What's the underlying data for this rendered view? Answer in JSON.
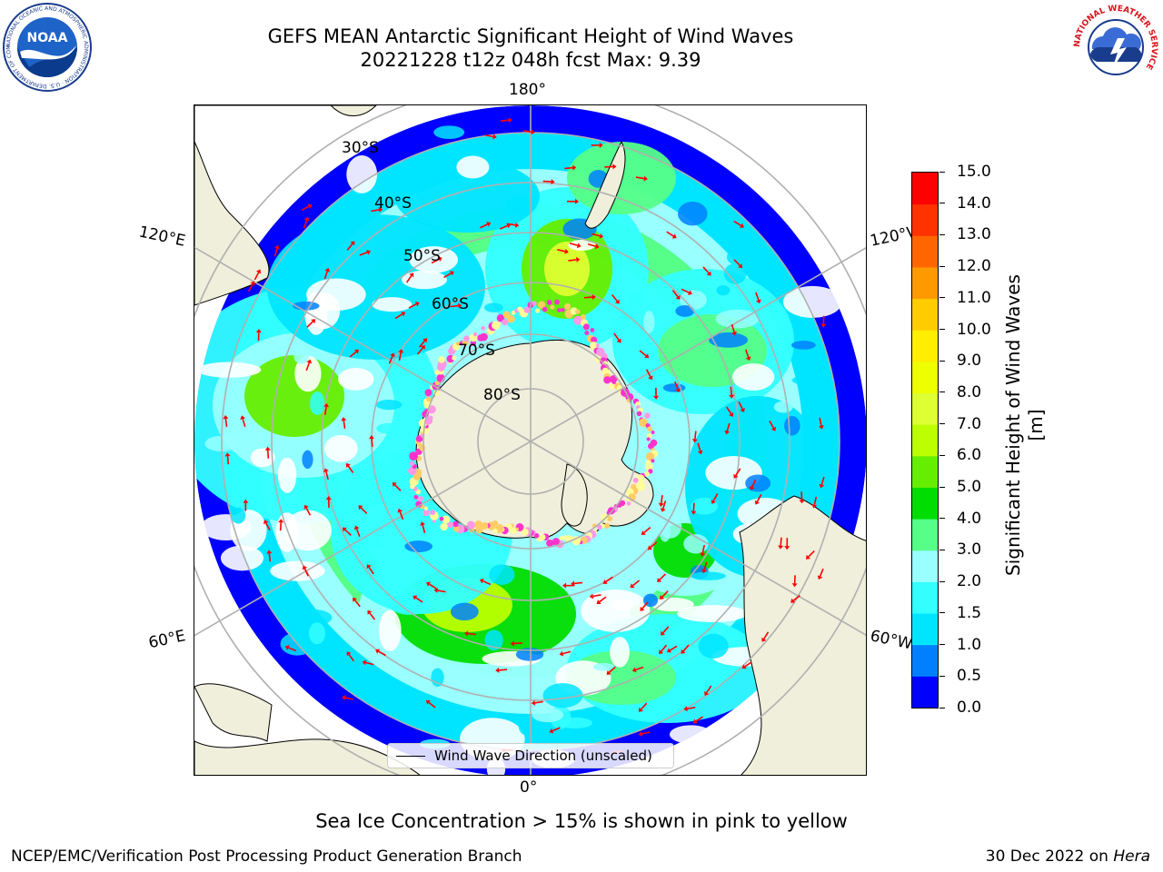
{
  "title": {
    "line1": "GEFS MEAN Antarctic Significant Height of Wind Waves",
    "line2": "20221228 t12z 048h fcst   Max: 9.39"
  },
  "map": {
    "projection": "south-polar-stereographic",
    "longitude_labels": {
      "top": "180°",
      "bottom": "0°",
      "left_upper": "120°E",
      "right_upper": "120°W",
      "left_lower": "60°E",
      "right_lower": "60°W"
    },
    "latitude_labels": [
      "30°S",
      "40°S",
      "50°S",
      "60°S",
      "70°S",
      "80°S"
    ],
    "land_color": "#efefdb",
    "ice_colors": [
      "#ff33cc",
      "#ff99e6",
      "#ffcc66",
      "#ffff99"
    ],
    "arrow_color": "#ff0000",
    "max_value": "9.39"
  },
  "colorbar": {
    "label": "Significant Height of Wind Waves [m]",
    "ticks": [
      "0.0",
      "0.5",
      "1.0",
      "1.5",
      "2.0",
      "3.0",
      "4.0",
      "5.0",
      "6.0",
      "7.0",
      "8.0",
      "9.0",
      "10.0",
      "11.0",
      "12.0",
      "13.0",
      "14.0",
      "15.0"
    ],
    "colors": [
      "#0000ff",
      "#0080ff",
      "#00e5ff",
      "#33ffff",
      "#99ffff",
      "#55ff88",
      "#00dd00",
      "#66ee00",
      "#bbff00",
      "#ddff33",
      "#eeff00",
      "#ffee00",
      "#ffcc00",
      "#ff9900",
      "#ff6600",
      "#ff3300",
      "#ff0000"
    ]
  },
  "legend": {
    "text": "Wind Wave Direction (unscaled)"
  },
  "caption": "Sea Ice Concentration > 15% is shown in pink to yellow",
  "footer": {
    "left": "NCEP/EMC/Verification Post Processing Product Generation Branch",
    "right_prefix": "30 Dec 2022 on ",
    "right_host": "Hera"
  },
  "logos": {
    "noaa": "NOAA",
    "noaa_ring": "NATIONAL OCEANIC AND ATMOSPHERIC ADMINISTRATION · U.S. DEPARTMENT OF COMMERCE",
    "nws_ring": "NATIONAL WEATHER SERVICE"
  }
}
